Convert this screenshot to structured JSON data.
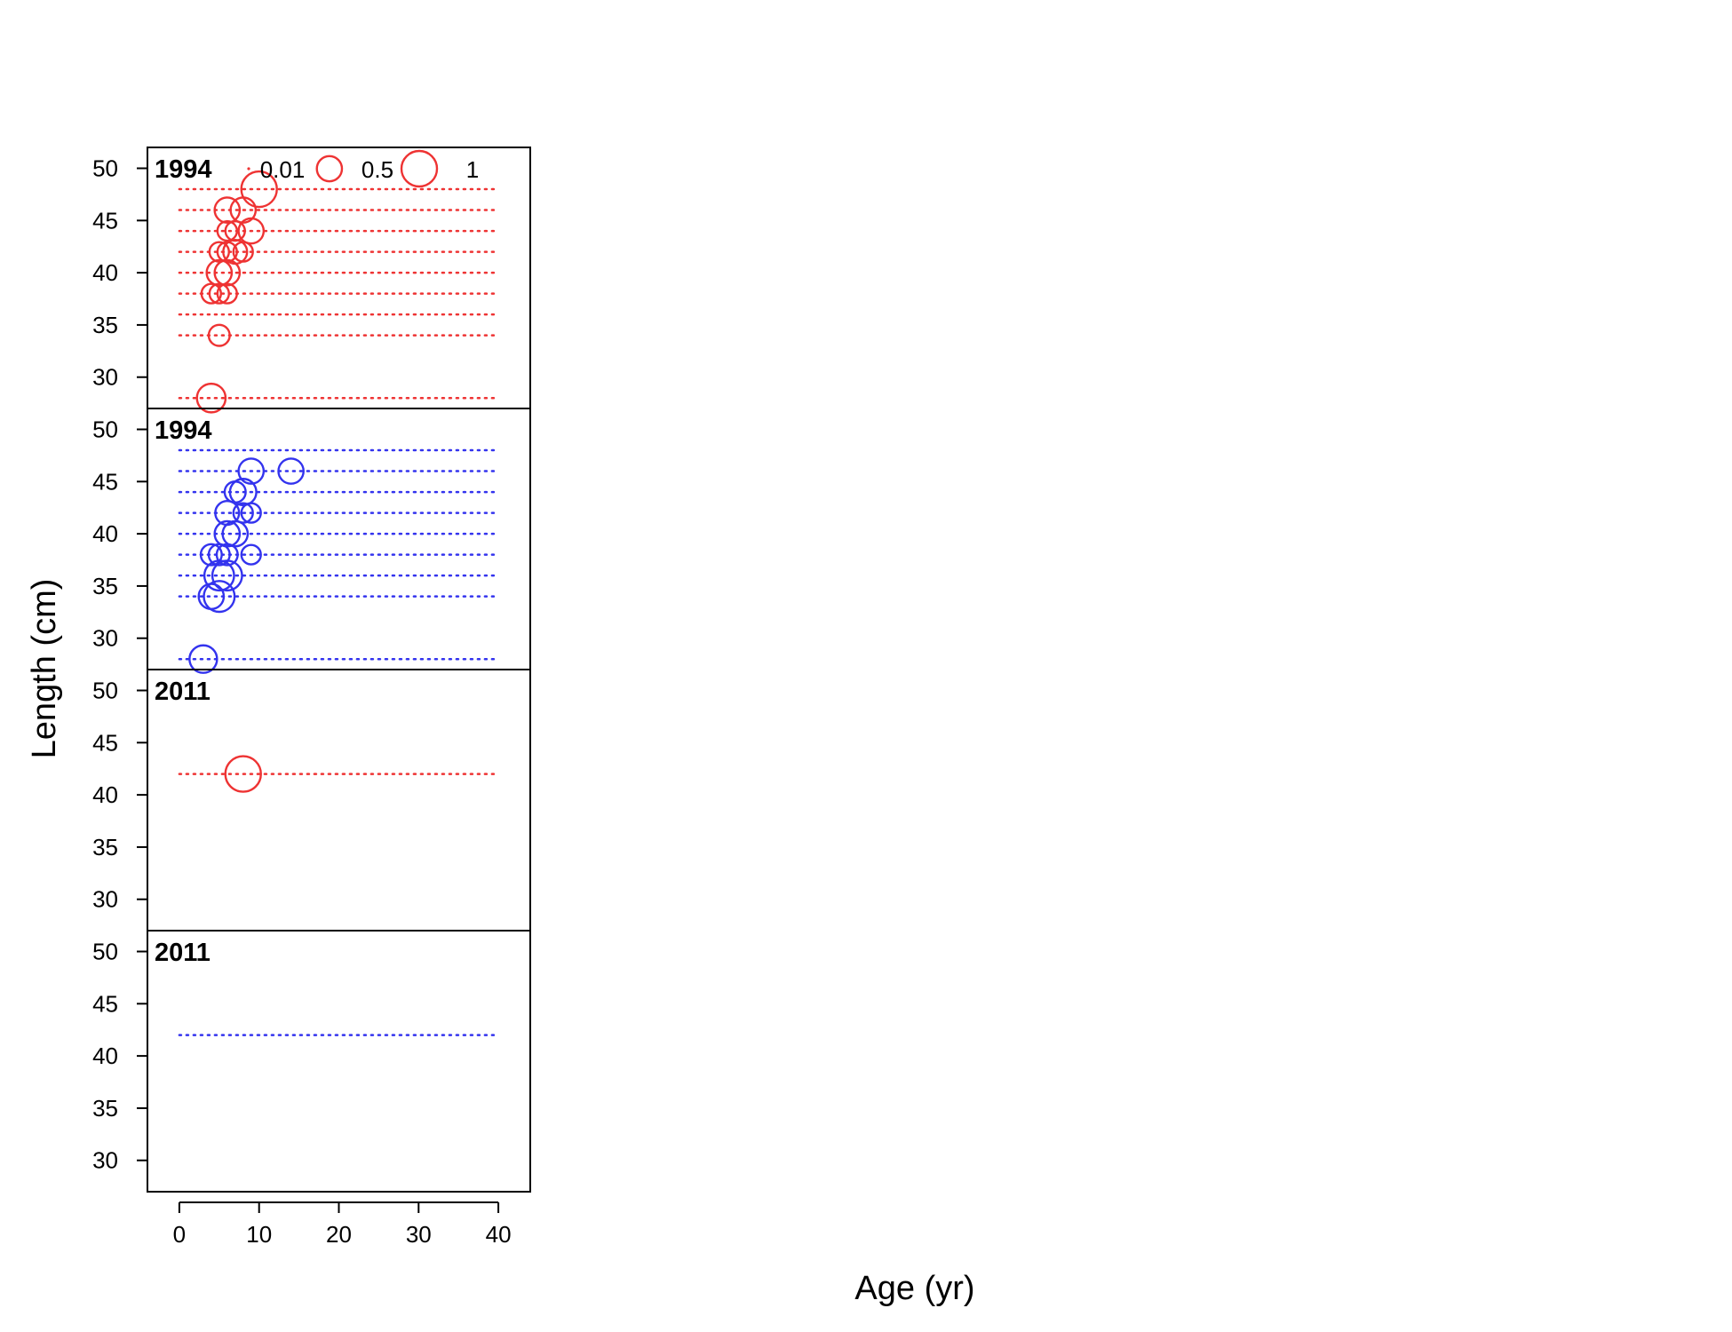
{
  "chart_data": {
    "type": "scatter",
    "subtype": "bubble-panels",
    "xlabel": "Age (yr)",
    "ylabel": "Length (cm)",
    "xlim": [
      -4,
      44
    ],
    "ylim": [
      27,
      52
    ],
    "x_ticks": [
      0,
      10,
      20,
      30,
      40
    ],
    "y_ticks": [
      30,
      35,
      40,
      45,
      50
    ],
    "grid": false,
    "legend": {
      "placement": "top-right",
      "color": "#ee3333",
      "items": [
        {
          "label": "0.01",
          "value": 0.01
        },
        {
          "label": "0.5",
          "value": 0.5
        },
        {
          "label": "1",
          "value": 1
        }
      ]
    },
    "panels": [
      {
        "year": "1994",
        "color": "#ee3333",
        "rows": [
          28,
          34,
          36,
          38,
          40,
          42,
          44,
          46,
          48
        ],
        "points": [
          {
            "x": 4,
            "y": 28,
            "size": 0.65
          },
          {
            "x": 5,
            "y": 34,
            "size": 0.35
          },
          {
            "x": 4,
            "y": 38,
            "size": 0.3
          },
          {
            "x": 5,
            "y": 38,
            "size": 0.3
          },
          {
            "x": 6,
            "y": 38,
            "size": 0.3
          },
          {
            "x": 5,
            "y": 40,
            "size": 0.5
          },
          {
            "x": 6,
            "y": 40,
            "size": 0.5
          },
          {
            "x": 5,
            "y": 42,
            "size": 0.3
          },
          {
            "x": 6,
            "y": 42,
            "size": 0.3
          },
          {
            "x": 7,
            "y": 42,
            "size": 0.45
          },
          {
            "x": 8,
            "y": 42,
            "size": 0.3
          },
          {
            "x": 6,
            "y": 44,
            "size": 0.3
          },
          {
            "x": 7,
            "y": 44,
            "size": 0.3
          },
          {
            "x": 9,
            "y": 44,
            "size": 0.5
          },
          {
            "x": 6,
            "y": 46,
            "size": 0.5
          },
          {
            "x": 8,
            "y": 46,
            "size": 0.5
          },
          {
            "x": 10,
            "y": 48,
            "size": 1.0
          }
        ]
      },
      {
        "year": "1994",
        "color": "#3333ee",
        "rows": [
          28,
          34,
          36,
          38,
          40,
          42,
          44,
          46,
          48
        ],
        "points": [
          {
            "x": 3,
            "y": 28,
            "size": 0.6
          },
          {
            "x": 4,
            "y": 34,
            "size": 0.5
          },
          {
            "x": 5,
            "y": 34,
            "size": 0.75
          },
          {
            "x": 5,
            "y": 36,
            "size": 0.7
          },
          {
            "x": 6,
            "y": 36,
            "size": 0.7
          },
          {
            "x": 4,
            "y": 38,
            "size": 0.35
          },
          {
            "x": 5,
            "y": 38,
            "size": 0.35
          },
          {
            "x": 6,
            "y": 38,
            "size": 0.35
          },
          {
            "x": 9,
            "y": 38,
            "size": 0.3
          },
          {
            "x": 6,
            "y": 40,
            "size": 0.5
          },
          {
            "x": 7,
            "y": 40,
            "size": 0.5
          },
          {
            "x": 6,
            "y": 42,
            "size": 0.45
          },
          {
            "x": 8,
            "y": 42,
            "size": 0.3
          },
          {
            "x": 9,
            "y": 42,
            "size": 0.3
          },
          {
            "x": 7,
            "y": 44,
            "size": 0.35
          },
          {
            "x": 8,
            "y": 44,
            "size": 0.55
          },
          {
            "x": 9,
            "y": 46,
            "size": 0.5
          },
          {
            "x": 14,
            "y": 46,
            "size": 0.5
          }
        ]
      },
      {
        "year": "2011",
        "color": "#ee3333",
        "rows": [
          42
        ],
        "points": [
          {
            "x": 8,
            "y": 42,
            "size": 1.0
          }
        ]
      },
      {
        "year": "2011",
        "color": "#3333ee",
        "rows": [
          42
        ],
        "points": []
      }
    ]
  }
}
